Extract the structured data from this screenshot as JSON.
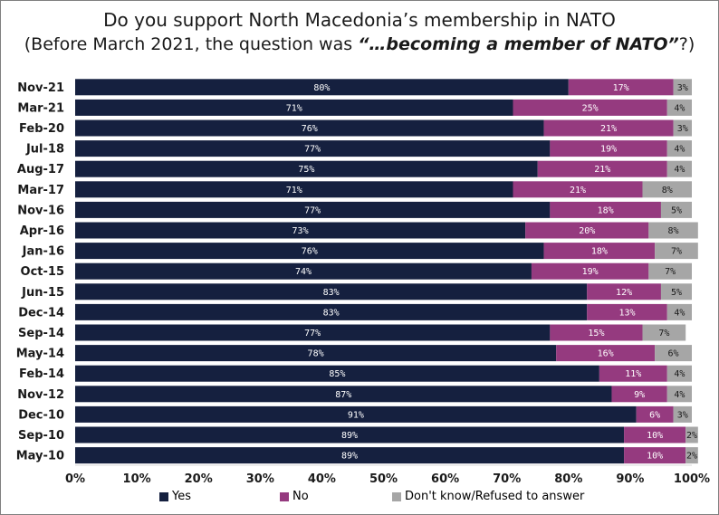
{
  "title": "Do you support North Macedonia’s membership in NATO",
  "subtitle": {
    "before": "(Before March 2021, the question was ",
    "quote": "“…becoming a member of NATO”",
    "after": "?)"
  },
  "colors": {
    "yes": "#15203f",
    "no": "#953a7f",
    "dk": "#a6a6a6"
  },
  "chart_data": {
    "type": "bar",
    "orientation": "horizontal",
    "stacked": true,
    "title": "Do you support North Macedonia’s membership in NATO",
    "subtitle": "(Before March 2021, the question was “…becoming a member of NATO”?)",
    "categories": [
      "Nov-21",
      "Mar-21",
      "Feb-20",
      "Jul-18",
      "Aug-17",
      "Mar-17",
      "Nov-16",
      "Apr-16",
      "Jan-16",
      "Oct-15",
      "Jun-15",
      "Dec-14",
      "Sep-14",
      "May-14",
      "Feb-14",
      "Nov-12",
      "Dec-10",
      "Sep-10",
      "May-10"
    ],
    "series": [
      {
        "name": "Yes",
        "color": "#15203f",
        "values": [
          80,
          71,
          76,
          77,
          75,
          71,
          77,
          73,
          76,
          74,
          83,
          83,
          77,
          78,
          85,
          87,
          91,
          89,
          89
        ]
      },
      {
        "name": "No",
        "color": "#953a7f",
        "values": [
          17,
          25,
          21,
          19,
          21,
          21,
          18,
          20,
          18,
          19,
          12,
          13,
          15,
          16,
          11,
          9,
          6,
          10,
          10
        ]
      },
      {
        "name": "Don't know/Refused to answer",
        "color": "#a6a6a6",
        "values": [
          3,
          4,
          3,
          4,
          4,
          8,
          5,
          8,
          7,
          7,
          5,
          4,
          7,
          6,
          4,
          4,
          3,
          2,
          2
        ]
      }
    ],
    "xlim": [
      0,
      100
    ],
    "xticks": [
      "0%",
      "10%",
      "20%",
      "30%",
      "40%",
      "50%",
      "60%",
      "70%",
      "80%",
      "90%",
      "100%"
    ],
    "legend_position": "bottom",
    "grid": false
  }
}
